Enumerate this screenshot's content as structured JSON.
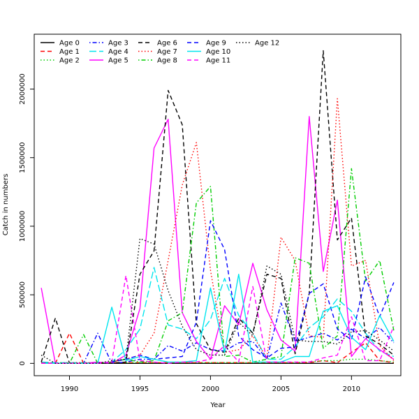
{
  "chart_data": {
    "type": "line",
    "title": "",
    "xlabel": "Year",
    "ylabel": "Catch in numbers",
    "xlim": [
      1987.5,
      2013.5
    ],
    "ylim": [
      -90000,
      2400000
    ],
    "x_ticks": [
      1990,
      1995,
      2000,
      2005,
      2010
    ],
    "x_tick_labels": [
      "1990",
      "1995",
      "2000",
      "2005",
      "2010"
    ],
    "y_ticks": [
      0,
      500000,
      1000000,
      1500000,
      2000000
    ],
    "y_tick_labels": [
      "0",
      "500000",
      "1000000",
      "1500000",
      "2000000"
    ],
    "grid": false,
    "legend_position": "top-left",
    "x": [
      1988,
      1989,
      1990,
      1991,
      1992,
      1993,
      1994,
      1995,
      1996,
      1997,
      1998,
      1999,
      2000,
      2001,
      2002,
      2003,
      2004,
      2005,
      2006,
      2007,
      2008,
      2009,
      2010,
      2011,
      2012,
      2013
    ],
    "series": [
      {
        "name": "Age 0",
        "color": "#000000",
        "dash": "solid",
        "values": [
          0,
          0,
          0,
          0,
          0,
          0,
          0,
          0,
          0,
          0,
          0,
          0,
          0,
          0,
          0,
          0,
          0,
          0,
          0,
          0,
          0,
          0,
          0,
          0,
          0,
          0
        ]
      },
      {
        "name": "Age 1",
        "color": "#ff0000",
        "dash": "dashed",
        "values": [
          5000,
          0,
          220000,
          0,
          5000,
          5000,
          5000,
          5000,
          5000,
          5000,
          5000,
          5000,
          5000,
          5000,
          5000,
          5000,
          5000,
          5000,
          5000,
          5000,
          20000,
          5000,
          80000,
          150000,
          20000,
          5000
        ]
      },
      {
        "name": "Age 2",
        "color": "#00cd00",
        "dash": "dotted",
        "values": [
          5000,
          5000,
          5000,
          5000,
          5000,
          5000,
          5000,
          5000,
          5000,
          5000,
          5000,
          5000,
          5000,
          5000,
          5000,
          5000,
          5000,
          5000,
          5000,
          10000,
          20000,
          20000,
          30000,
          30000,
          20000,
          10000
        ]
      },
      {
        "name": "Age 3",
        "color": "#0000ff",
        "dash": "dotdash",
        "values": [
          10000,
          0,
          0,
          0,
          220000,
          0,
          10000,
          30000,
          30000,
          130000,
          90000,
          150000,
          100000,
          90000,
          150000,
          160000,
          30000,
          440000,
          160000,
          190000,
          220000,
          170000,
          250000,
          180000,
          260000,
          150000
        ]
      },
      {
        "name": "Age 4",
        "color": "#00e5ee",
        "dash": "longdash",
        "values": [
          10000,
          5000,
          5000,
          5000,
          0,
          10000,
          100000,
          250000,
          700000,
          280000,
          250000,
          180000,
          320000,
          620000,
          350000,
          220000,
          30000,
          30000,
          120000,
          260000,
          340000,
          470000,
          380000,
          220000,
          90000,
          50000
        ]
      },
      {
        "name": "Age 5",
        "color": "#ff00ff",
        "dash": "solid",
        "values": [
          550000,
          0,
          0,
          0,
          10000,
          0,
          60000,
          400000,
          1570000,
          1780000,
          370000,
          160000,
          30000,
          420000,
          280000,
          730000,
          390000,
          170000,
          90000,
          1800000,
          670000,
          1190000,
          50000,
          180000,
          100000,
          30000
        ]
      },
      {
        "name": "Age 6",
        "color": "#000000",
        "dash": "dashed",
        "values": [
          10000,
          330000,
          0,
          0,
          0,
          0,
          10000,
          650000,
          820000,
          1990000,
          1740000,
          290000,
          100000,
          80000,
          330000,
          220000,
          650000,
          620000,
          70000,
          510000,
          2280000,
          900000,
          1060000,
          200000,
          140000,
          60000
        ]
      },
      {
        "name": "Age 7",
        "color": "#ff0000",
        "dash": "dotted",
        "values": [
          5000,
          0,
          5000,
          5000,
          0,
          10000,
          30000,
          60000,
          220000,
          750000,
          1300000,
          1610000,
          680000,
          80000,
          100000,
          200000,
          40000,
          920000,
          750000,
          200000,
          190000,
          1930000,
          710000,
          750000,
          130000,
          20000
        ]
      },
      {
        "name": "Age 8",
        "color": "#00cd00",
        "dash": "dotdash",
        "values": [
          0,
          0,
          0,
          210000,
          0,
          10000,
          30000,
          10000,
          20000,
          310000,
          370000,
          1170000,
          1290000,
          50000,
          60000,
          10000,
          30000,
          50000,
          770000,
          730000,
          110000,
          200000,
          1420000,
          600000,
          750000,
          240000
        ]
      },
      {
        "name": "Age 9",
        "color": "#0000ff",
        "dash": "dashed",
        "values": [
          0,
          0,
          0,
          0,
          0,
          10000,
          30000,
          60000,
          30000,
          40000,
          50000,
          300000,
          1040000,
          830000,
          200000,
          100000,
          40000,
          110000,
          120000,
          510000,
          580000,
          250000,
          170000,
          630000,
          340000,
          590000
        ]
      },
      {
        "name": "Age 10",
        "color": "#00e5ee",
        "dash": "solid",
        "values": [
          0,
          0,
          0,
          0,
          0,
          410000,
          20000,
          50000,
          30000,
          10000,
          10000,
          20000,
          550000,
          80000,
          650000,
          10000,
          10000,
          10000,
          50000,
          50000,
          380000,
          420000,
          190000,
          100000,
          350000,
          160000
        ]
      },
      {
        "name": "Age 11",
        "color": "#ff00ff",
        "dash": "dashed",
        "values": [
          0,
          0,
          0,
          0,
          0,
          10000,
          640000,
          20000,
          10000,
          0,
          10000,
          10000,
          30000,
          130000,
          10000,
          560000,
          10000,
          10000,
          10000,
          10000,
          40000,
          60000,
          340000,
          20000,
          20000,
          270000
        ]
      },
      {
        "name": "Age 12",
        "color": "#000000",
        "dash": "dotted",
        "values": [
          60000,
          0,
          0,
          0,
          0,
          20000,
          30000,
          910000,
          870000,
          530000,
          270000,
          100000,
          60000,
          60000,
          300000,
          200000,
          710000,
          650000,
          170000,
          160000,
          160000,
          140000,
          230000,
          240000,
          170000,
          90000
        ]
      }
    ]
  }
}
